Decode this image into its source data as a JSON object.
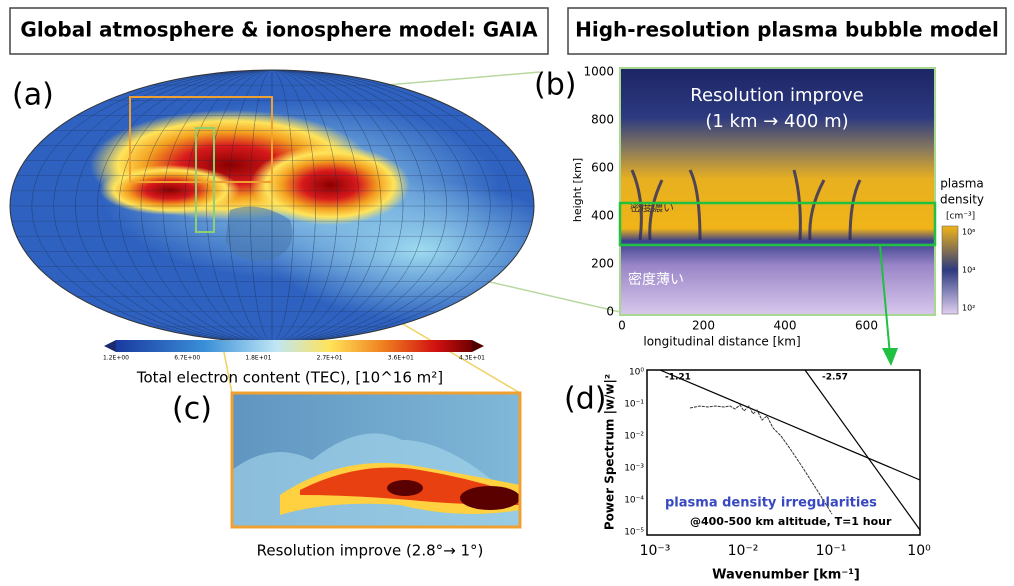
{
  "titles": [
    "Global atmosphere & ionosphere model: GAIA",
    "High-resolution plasma bubble model"
  ],
  "panel_a": {
    "label": "(a)",
    "colorbar_ticks": [
      "1.2E+00",
      "6.7E+00",
      "1.8E+01",
      "2.7E+01",
      "3.6E+01",
      "4.3E+01"
    ],
    "caption": "Total electron content (TEC), [10^16 m²]"
  },
  "panel_b": {
    "label": "(b)",
    "headline": [
      "Resolution improve",
      "(1 km → 400 m)"
    ],
    "ylabel": "height [km]",
    "yticks": [
      "1000",
      "800",
      "600",
      "400",
      "200",
      "0"
    ],
    "xticks": [
      "0",
      "200",
      "400",
      "600"
    ],
    "xlabel": "longitudinal distance [km]",
    "dense_note": "密度濃い",
    "sparse_note": "密度薄い",
    "colorbar_title": [
      "plasma",
      "density"
    ],
    "colorbar_unit": "[cm⁻³]",
    "colorbar_ticks": [
      "10⁶",
      "10⁴",
      "10²"
    ]
  },
  "panel_c": {
    "label": "(c)",
    "caption": "Resolution improve (2.8°→ 1°)"
  },
  "panel_d": {
    "label": "(d)",
    "ylabel": "Power Spectrum  |w/w|²",
    "xlabel": "Wavenumber [km⁻¹]",
    "xticks": [
      "10⁻³",
      "10⁻²",
      "10⁻¹",
      "10⁰"
    ],
    "yticks": [
      "10⁰",
      "10⁻¹",
      "10⁻²",
      "10⁻³",
      "10⁻⁴",
      "10⁻⁵"
    ],
    "slopes": [
      "-1.21",
      "-2.57"
    ],
    "legend": [
      "plasma density irregularities",
      "@400-500 km altitude, T=1 hour"
    ]
  }
}
